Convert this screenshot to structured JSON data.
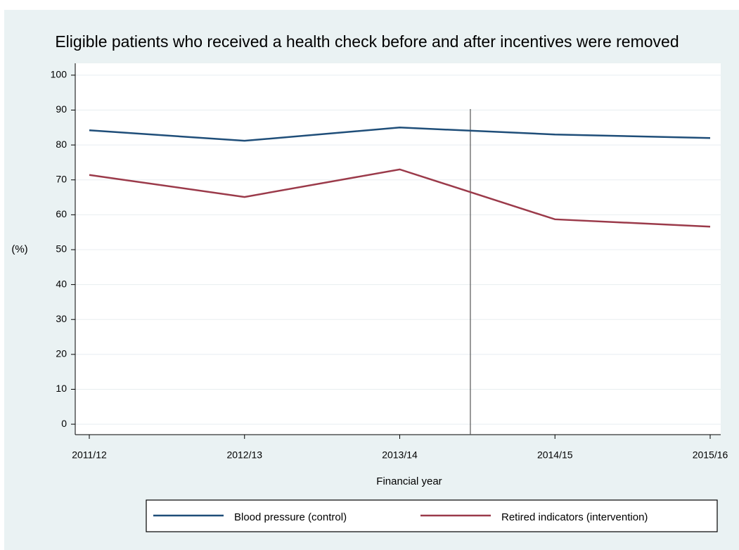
{
  "chart_data": {
    "type": "line",
    "title": "Eligible patients who received a health check before and after incentives were removed",
    "x_label": "Financial year",
    "y_label": "(%)",
    "categories": [
      "2011/12",
      "2012/13",
      "2013/14",
      "2014/15",
      "2015/16"
    ],
    "series": [
      {
        "name": "Blood pressure (control)",
        "color": "#1f4e79",
        "values": [
          84.2,
          81.2,
          85,
          83,
          82
        ]
      },
      {
        "name": "Retired indicators (intervention)",
        "color": "#9b3a4a",
        "values": [
          71.4,
          65.1,
          73,
          58.7,
          56.6
        ]
      }
    ],
    "ylim": [
      -3,
      103.4
    ],
    "yticks": [
      0,
      10,
      20,
      30,
      40,
      50,
      60,
      70,
      80,
      90,
      100
    ],
    "grid": true,
    "legend": "bottom"
  }
}
